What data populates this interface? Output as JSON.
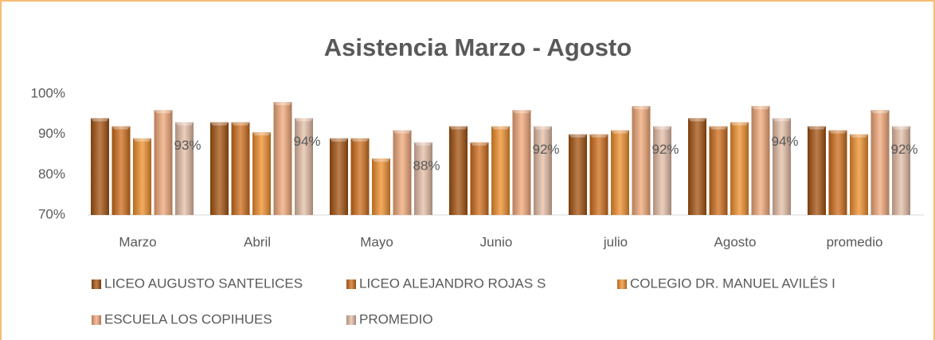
{
  "chart_data": {
    "type": "bar",
    "title": "Asistencia Marzo - Agosto",
    "categories": [
      "Marzo",
      "Abril",
      "Mayo",
      "Junio",
      "julio",
      "Agosto",
      "promedio"
    ],
    "series": [
      {
        "name": "LICEO AUGUSTO SANTELICES",
        "color": "#a5520f",
        "values": [
          94,
          93,
          89,
          92,
          90,
          94,
          92
        ]
      },
      {
        "name": "LICEO ALEJANDRO  ROJAS S",
        "color": "#cf6d1a",
        "values": [
          92,
          93,
          89,
          88,
          90,
          92,
          91
        ]
      },
      {
        "name": "COLEGIO DR. MANUEL AVILÉS I",
        "color": "#f08f2c",
        "values": [
          89,
          90.5,
          84,
          92,
          91,
          93,
          90
        ]
      },
      {
        "name": "ESCUELA LOS COPIHUES",
        "color": "#f2a878",
        "values": [
          96,
          98,
          91,
          96,
          97,
          97,
          96
        ]
      },
      {
        "name": "PROMEDIO",
        "color": "#e6bea6",
        "values": [
          93,
          94,
          88,
          92,
          92,
          94,
          92
        ],
        "value_labels": [
          "93%",
          "94%",
          "88%",
          "92%",
          "92%",
          "94%",
          "92%"
        ]
      }
    ],
    "ylim": [
      70,
      100
    ],
    "yticks": [
      {
        "value": 70,
        "label": "70%"
      },
      {
        "value": 80,
        "label": "80%"
      },
      {
        "value": 90,
        "label": "90%"
      },
      {
        "value": 100,
        "label": "100%"
      }
    ],
    "grid": false,
    "legend": "bottom"
  }
}
